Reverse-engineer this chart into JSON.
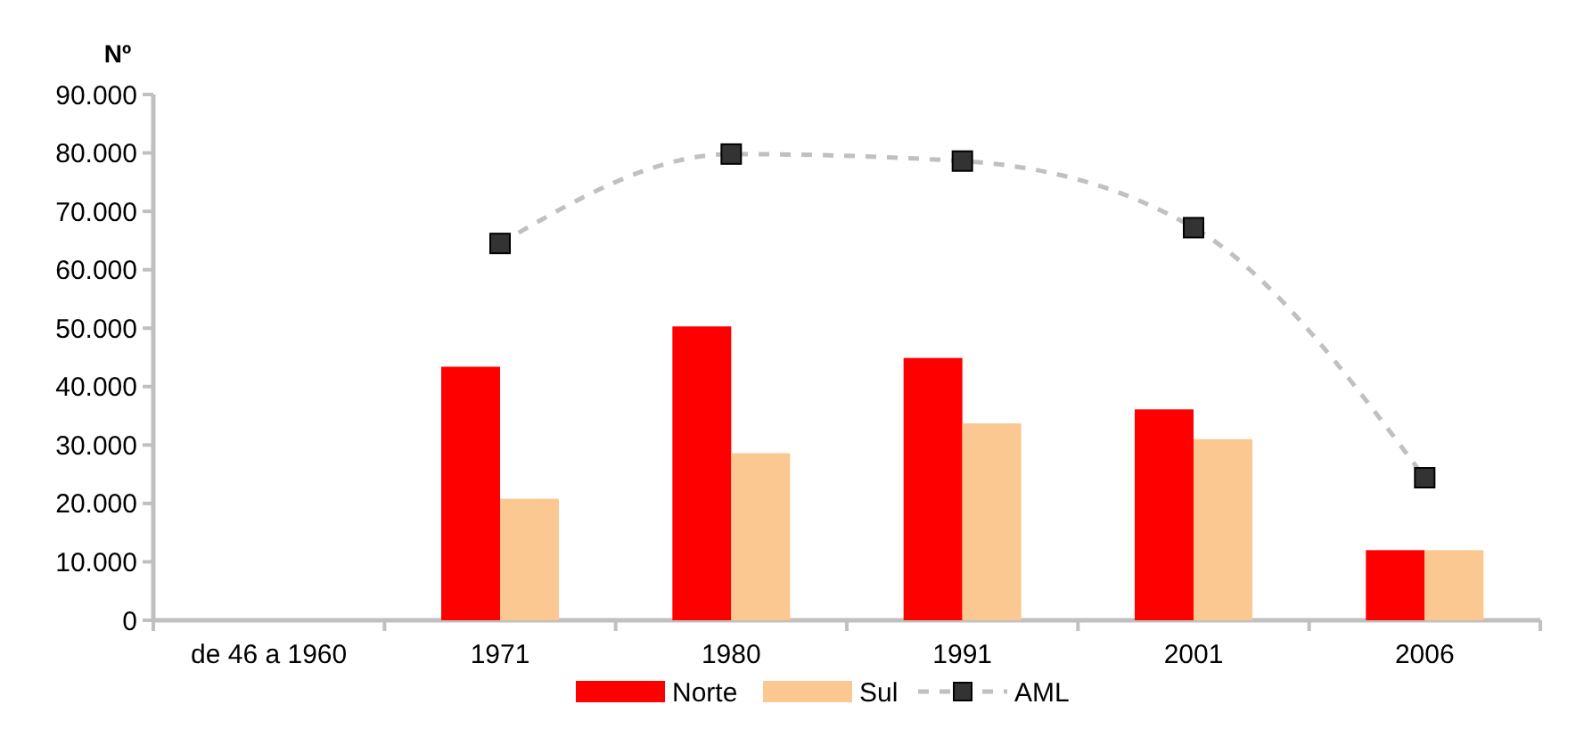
{
  "chart_data": {
    "type": "bar",
    "ylabel": "Nº",
    "categories": [
      "de 46 a 1960",
      "1971",
      "1980",
      "1991",
      "2001",
      "2006"
    ],
    "series": [
      {
        "name": "Norte",
        "color": "#ff0000",
        "values": [
          null,
          43400,
          50300,
          44900,
          36100,
          12000
        ]
      },
      {
        "name": "Sul",
        "color": "#fbc891",
        "values": [
          null,
          20800,
          28600,
          33700,
          31000,
          12000
        ]
      },
      {
        "name": "AML",
        "type": "line",
        "color": "#c0c0c0",
        "marker": "square",
        "line_style": "dashed",
        "values": [
          null,
          64500,
          79800,
          78600,
          67200,
          24400
        ]
      }
    ],
    "ylim": [
      0,
      90000
    ],
    "yticks": [
      {
        "value": 0,
        "label": "0"
      },
      {
        "value": 10000,
        "label": "10.000"
      },
      {
        "value": 20000,
        "label": "20.000"
      },
      {
        "value": 30000,
        "label": "30.000"
      },
      {
        "value": 40000,
        "label": "40.000"
      },
      {
        "value": 50000,
        "label": "50.000"
      },
      {
        "value": 60000,
        "label": "60.000"
      },
      {
        "value": 70000,
        "label": "70.000"
      },
      {
        "value": 80000,
        "label": "80.000"
      },
      {
        "value": 90000,
        "label": "90.000"
      }
    ],
    "grid": false,
    "legend": "bottom"
  }
}
